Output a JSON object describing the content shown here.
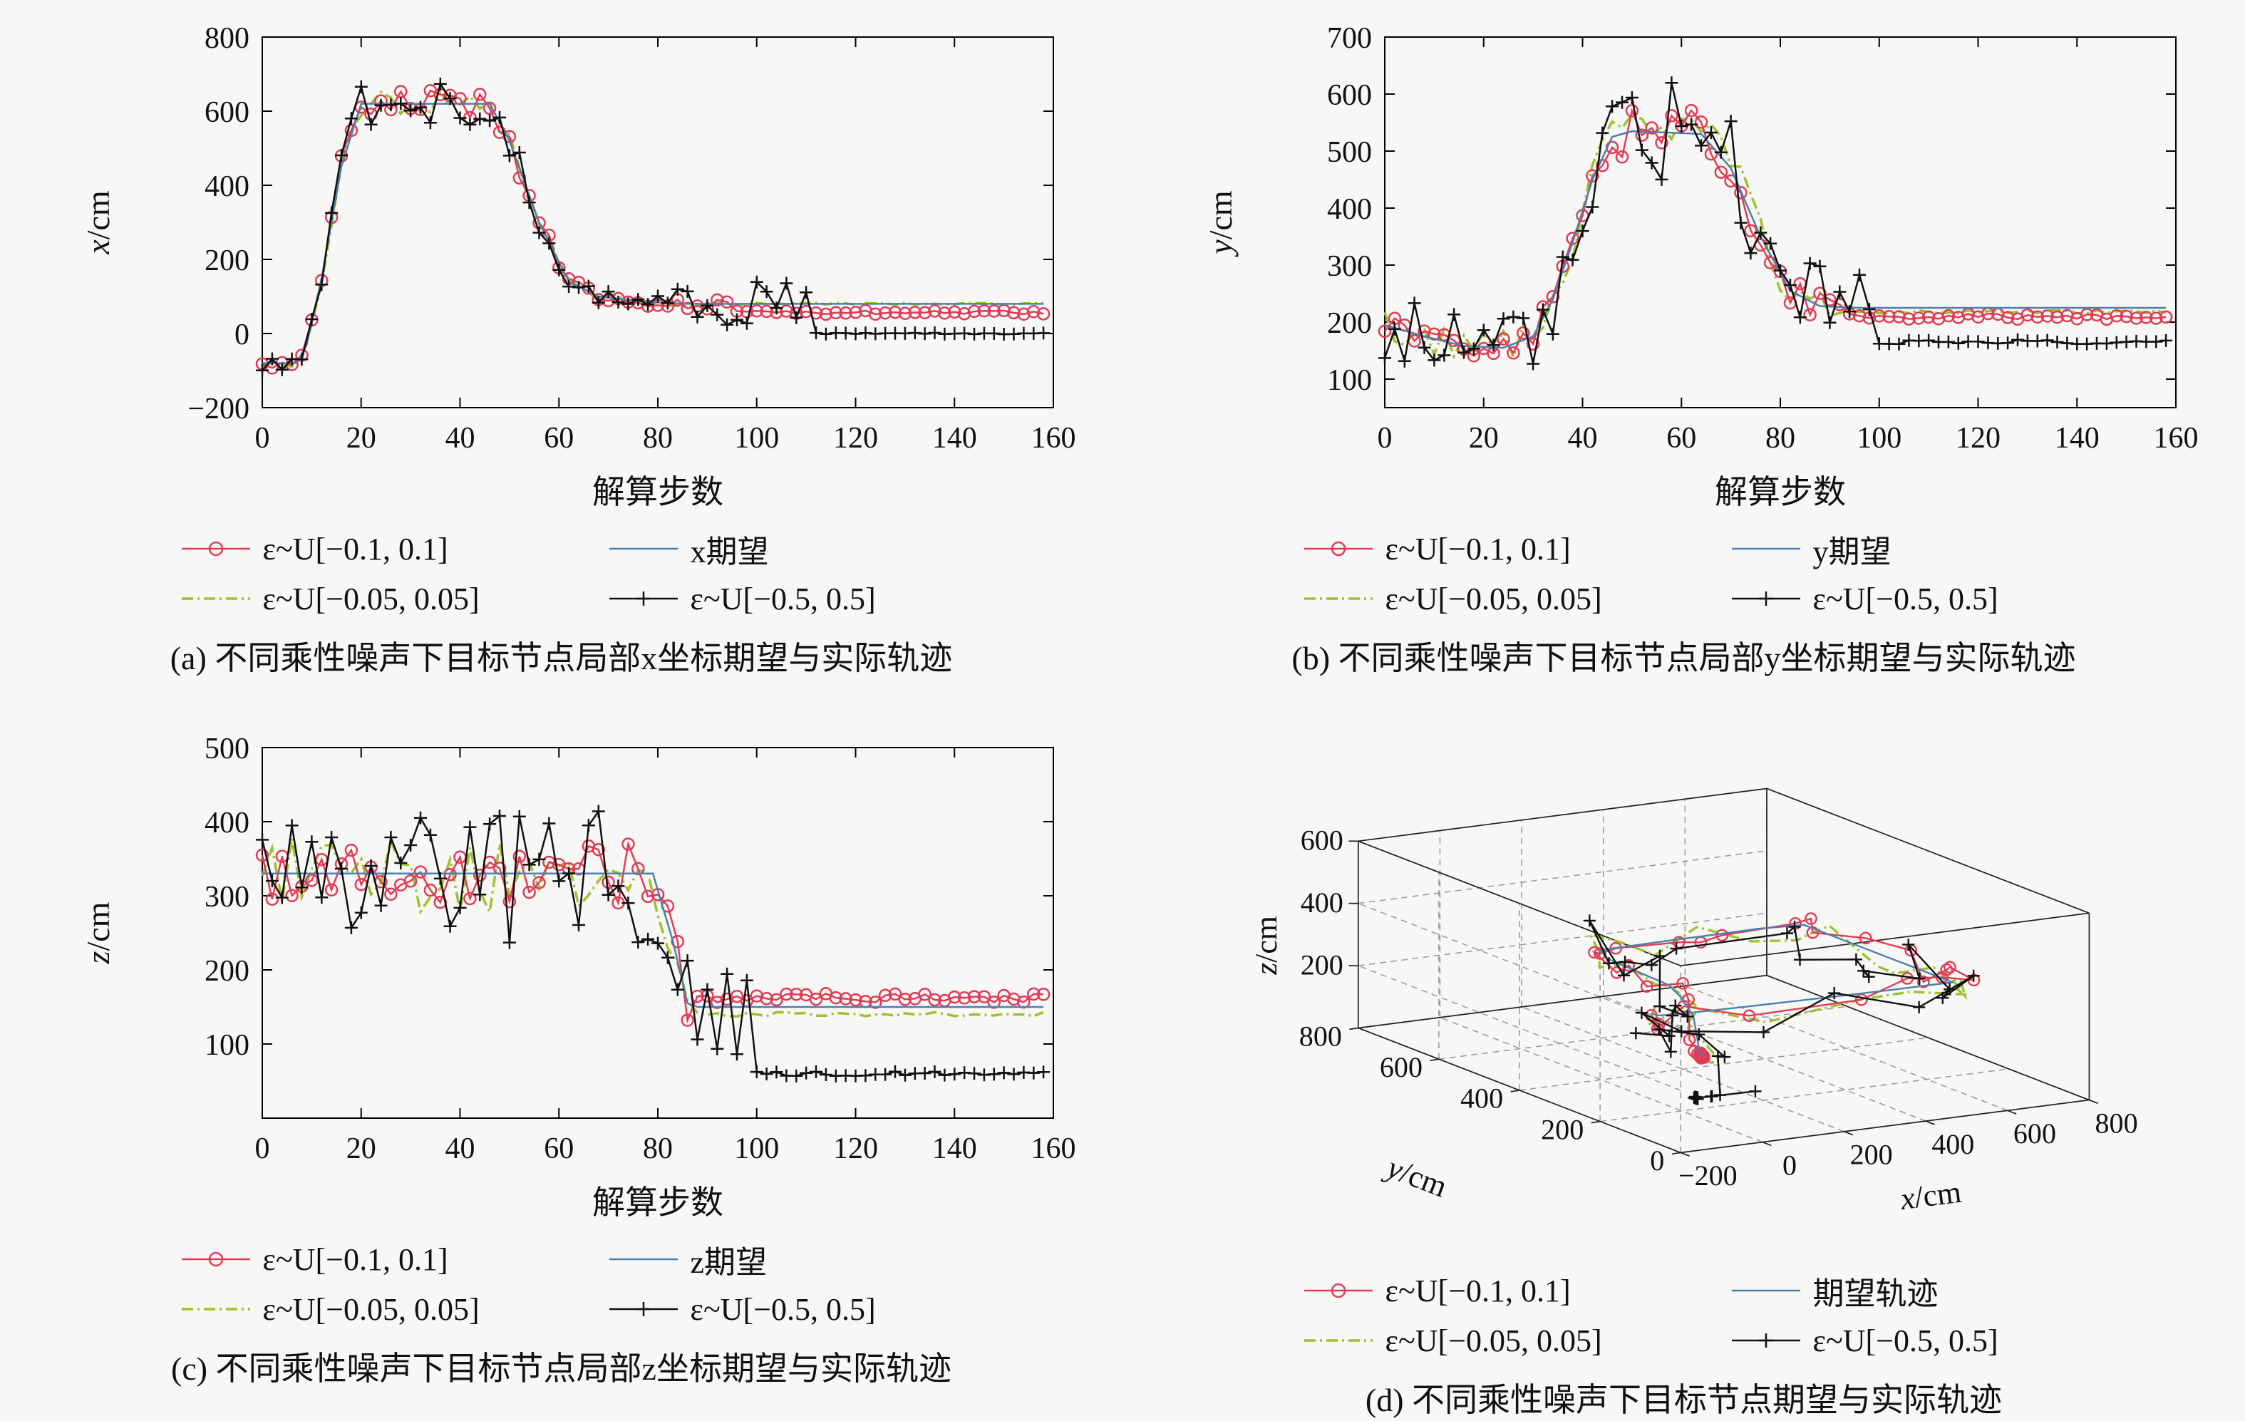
{
  "figure": {
    "background": "#f7f7f5"
  },
  "chart_data": [
    {
      "id": "a",
      "type": "line",
      "xlabel": "解算步数",
      "ylabel": "x/cm",
      "caption": "(a) 不同乘性噪声下目标节点局部x坐标期望与实际轨迹",
      "xlim": [
        0,
        160
      ],
      "ylim": [
        -200,
        800
      ],
      "xticks": [
        0,
        20,
        40,
        60,
        80,
        100,
        120,
        140,
        160
      ],
      "yticks": [
        -200,
        0,
        200,
        400,
        600,
        800
      ],
      "grid": false,
      "seed": 11,
      "expected_waypoints": [
        [
          0,
          -80
        ],
        [
          7,
          -80
        ],
        [
          9,
          -30
        ],
        [
          12,
          150
        ],
        [
          16,
          450
        ],
        [
          20,
          620
        ],
        [
          46,
          620
        ],
        [
          50,
          520
        ],
        [
          56,
          300
        ],
        [
          62,
          140
        ],
        [
          68,
          100
        ],
        [
          78,
          85
        ],
        [
          86,
          80
        ],
        [
          160,
          80
        ]
      ],
      "series": [
        {
          "name": "ε~U[−0.1, 0.1]",
          "color": "#e23b55",
          "style": "circle",
          "frac": 0.045,
          "base": 10,
          "tail": {
            "start": 96,
            "value": 57,
            "jit": 5
          }
        },
        {
          "name": "ε~U[−0.05, 0.05]",
          "color": "#9dc22f",
          "style": "dashdot",
          "frac": 0.04,
          "base": 8,
          "tail": {
            "start": 90,
            "value": 80,
            "jit": 3
          }
        },
        {
          "name": "x期望",
          "color": "#4d7fae",
          "style": "line",
          "frac": 0,
          "base": 0
        },
        {
          "name": "ε~U[−0.5, 0.5]",
          "color": "#111111",
          "style": "plus",
          "frac": 0.075,
          "base": 15,
          "late": {
            "start": 84,
            "amp": 65
          },
          "tail": {
            "start": 112,
            "value": 0,
            "jit": 2
          }
        }
      ],
      "legend": [
        {
          "label": "ε~U[−0.1, 0.1]",
          "series": 0
        },
        {
          "label": "x期望",
          "series": 2
        },
        {
          "label": "ε~U[−0.05, 0.05]",
          "series": 1
        },
        {
          "label": "ε~U[−0.5, 0.5]",
          "series": 3
        }
      ]
    },
    {
      "id": "b",
      "type": "line",
      "xlabel": "解算步数",
      "ylabel": "y/cm",
      "caption": "(b) 不同乘性噪声下目标节点局部y坐标期望与实际轨迹",
      "xlim": [
        0,
        160
      ],
      "ylim": [
        50,
        700
      ],
      "xticks": [
        0,
        20,
        40,
        60,
        80,
        100,
        120,
        140,
        160
      ],
      "yticks": [
        100,
        200,
        300,
        400,
        500,
        600,
        700
      ],
      "grid": false,
      "seed": 22,
      "expected_waypoints": [
        [
          0,
          195
        ],
        [
          8,
          175
        ],
        [
          16,
          158
        ],
        [
          24,
          155
        ],
        [
          30,
          175
        ],
        [
          34,
          240
        ],
        [
          38,
          340
        ],
        [
          42,
          450
        ],
        [
          46,
          525
        ],
        [
          50,
          535
        ],
        [
          64,
          530
        ],
        [
          70,
          470
        ],
        [
          76,
          350
        ],
        [
          82,
          255
        ],
        [
          88,
          228
        ],
        [
          96,
          225
        ],
        [
          160,
          225
        ]
      ],
      "series": [
        {
          "name": "ε~U[−0.1, 0.1]",
          "color": "#e23b55",
          "style": "circle",
          "frac": 0.055,
          "base": 12,
          "tail": {
            "start": 96,
            "value": 210,
            "jit": 5
          }
        },
        {
          "name": "ε~U[−0.05, 0.05]",
          "color": "#9dc22f",
          "style": "dashdot",
          "frac": 0.05,
          "base": 22,
          "tail": {
            "start": 92,
            "value": 218,
            "jit": 3
          }
        },
        {
          "name": "y期望",
          "color": "#4d7fae",
          "style": "line",
          "frac": 0,
          "base": 0
        },
        {
          "name": "ε~U[−0.5, 0.5]",
          "color": "#111111",
          "style": "plus",
          "frac": 0.08,
          "base": 45,
          "late": {
            "start": 84,
            "amp": 70
          },
          "tail": {
            "start": 100,
            "value": 165,
            "jit": 4
          }
        }
      ],
      "legend": [
        {
          "label": "ε~U[−0.1, 0.1]",
          "series": 0
        },
        {
          "label": "y期望",
          "series": 2
        },
        {
          "label": "ε~U[−0.05, 0.05]",
          "series": 1
        },
        {
          "label": "ε~U[−0.5, 0.5]",
          "series": 3
        }
      ]
    },
    {
      "id": "c",
      "type": "line",
      "xlabel": "解算步数",
      "ylabel": "z/cm",
      "caption": "(c) 不同乘性噪声下目标节点局部z坐标期望与实际轨迹",
      "xlim": [
        0,
        160
      ],
      "ylim": [
        0,
        500
      ],
      "xticks": [
        0,
        20,
        40,
        60,
        80,
        100,
        120,
        140,
        160
      ],
      "yticks": [
        100,
        200,
        300,
        400,
        500
      ],
      "grid": false,
      "seed": 33,
      "expected_waypoints": [
        [
          0,
          330
        ],
        [
          79,
          330
        ],
        [
          83,
          240
        ],
        [
          86,
          155
        ],
        [
          88,
          150
        ],
        [
          160,
          150
        ]
      ],
      "series": [
        {
          "name": "ε~U[−0.1, 0.1]",
          "color": "#e23b55",
          "style": "circle",
          "frac": 0.1,
          "base": 8,
          "tail": {
            "start": 88,
            "value": 162,
            "jit": 6
          }
        },
        {
          "name": "ε~U[−0.05, 0.05]",
          "color": "#9dc22f",
          "style": "dashdot",
          "frac": 0.13,
          "base": 10,
          "tail": {
            "start": 90,
            "value": 140,
            "jit": 3
          }
        },
        {
          "name": "z期望",
          "color": "#4d7fae",
          "style": "line",
          "frac": 0,
          "base": 0
        },
        {
          "name": "ε~U[−0.5, 0.5]",
          "color": "#111111",
          "style": "plus",
          "frac": 0.27,
          "base": 5,
          "late": {
            "start": 86,
            "amp": 90
          },
          "tail": {
            "start": 100,
            "value": 60,
            "jit": 3
          }
        }
      ],
      "legend": [
        {
          "label": "ε~U[−0.1, 0.1]",
          "series": 0
        },
        {
          "label": "z期望",
          "series": 2
        },
        {
          "label": "ε~U[−0.05, 0.05]",
          "series": 1
        },
        {
          "label": "ε~U[−0.5, 0.5]",
          "series": 3
        }
      ]
    },
    {
      "id": "d",
      "type": "line3d",
      "xlabel": "x/cm",
      "ylabel": "y/cm",
      "zlabel": "z/cm",
      "caption": "(d) 不同乘性噪声下目标节点期望与实际轨迹",
      "xlim": [
        -200,
        800
      ],
      "ylim": [
        0,
        800
      ],
      "zlim": [
        0,
        600
      ],
      "xticks": [
        -200,
        0,
        200,
        400,
        600,
        800
      ],
      "yticks": [
        0,
        200,
        400,
        600,
        800
      ],
      "zticks": [
        200,
        400,
        600
      ],
      "grid": true,
      "seed": 44,
      "sources": [
        "a",
        "b",
        "c"
      ],
      "series": [
        {
          "name": "ε~U[−0.1, 0.1]",
          "color": "#e23b55",
          "style": "circle"
        },
        {
          "name": "ε~U[−0.05, 0.05]",
          "color": "#9dc22f",
          "style": "dashdot"
        },
        {
          "name": "期望轨迹",
          "color": "#4d7fae",
          "style": "line"
        },
        {
          "name": "ε~U[−0.5, 0.5]",
          "color": "#111111",
          "style": "plus"
        }
      ],
      "legend": [
        {
          "label": "ε~U[−0.1, 0.1]",
          "series": 0
        },
        {
          "label": "期望轨迹",
          "series": 2
        },
        {
          "label": "ε~U[−0.05, 0.05]",
          "series": 1
        },
        {
          "label": "ε~U[−0.5, 0.5]",
          "series": 3
        }
      ]
    }
  ]
}
